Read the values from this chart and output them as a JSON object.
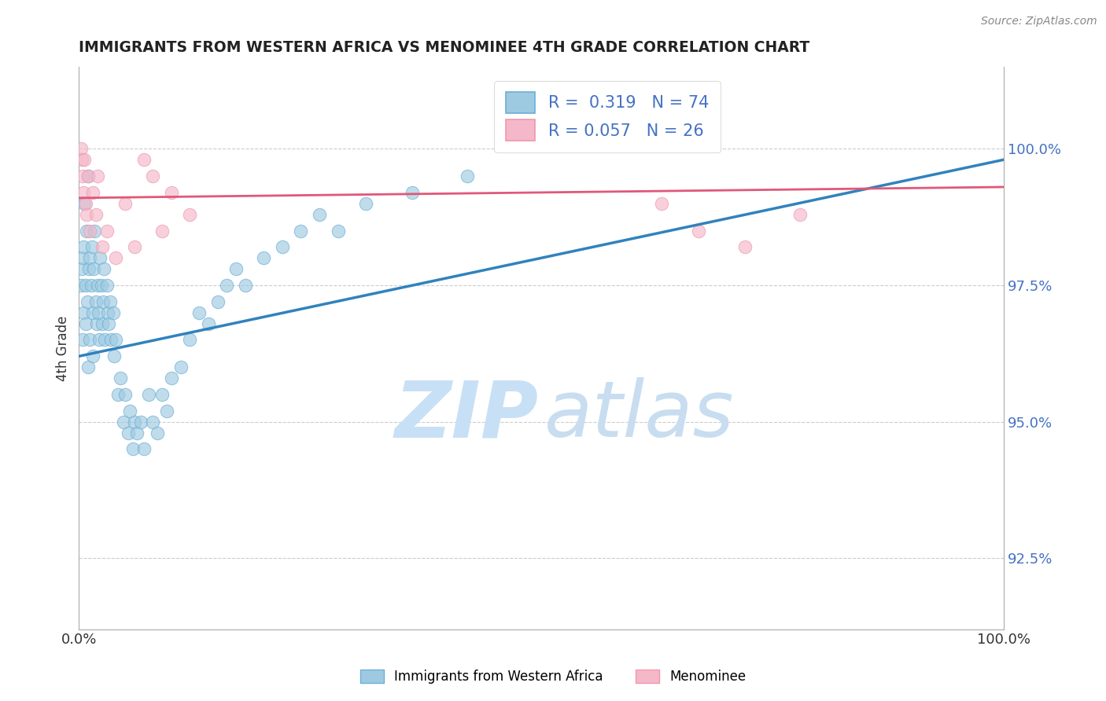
{
  "title": "IMMIGRANTS FROM WESTERN AFRICA VS MENOMINEE 4TH GRADE CORRELATION CHART",
  "source": "Source: ZipAtlas.com",
  "ylabel": "4th Grade",
  "xlim": [
    0.0,
    100.0
  ],
  "ylim": [
    91.2,
    101.5
  ],
  "yticks": [
    92.5,
    95.0,
    97.5,
    100.0
  ],
  "ytick_labels": [
    "92.5%",
    "95.0%",
    "97.5%",
    "100.0%"
  ],
  "xtick_labels": [
    "0.0%",
    "100.0%"
  ],
  "blue_R": 0.319,
  "blue_N": 74,
  "pink_R": 0.057,
  "pink_N": 26,
  "blue_color": "#9ecae1",
  "pink_color": "#f4b8c8",
  "blue_edge_color": "#6baed6",
  "pink_edge_color": "#f096b0",
  "blue_line_color": "#3182bd",
  "pink_line_color": "#e05878",
  "legend_blue_label": "Immigrants from Western Africa",
  "legend_pink_label": "Menominee",
  "background_color": "#ffffff",
  "grid_color": "#cccccc",
  "tick_value_color": "#4472c4",
  "watermark_zip_color": "#c8e0f5",
  "watermark_atlas_color": "#c8ddf0",
  "blue_x": [
    0.2,
    0.3,
    0.4,
    0.4,
    0.5,
    0.5,
    0.6,
    0.7,
    0.7,
    0.8,
    0.9,
    1.0,
    1.0,
    1.1,
    1.2,
    1.2,
    1.3,
    1.4,
    1.5,
    1.5,
    1.6,
    1.7,
    1.8,
    1.9,
    2.0,
    2.1,
    2.2,
    2.3,
    2.4,
    2.5,
    2.6,
    2.7,
    2.8,
    3.0,
    3.1,
    3.2,
    3.4,
    3.5,
    3.7,
    3.8,
    4.0,
    4.2,
    4.5,
    4.8,
    5.0,
    5.3,
    5.5,
    5.8,
    6.0,
    6.3,
    6.7,
    7.0,
    7.5,
    8.0,
    8.5,
    9.0,
    9.5,
    10.0,
    11.0,
    12.0,
    13.0,
    14.0,
    15.0,
    16.0,
    17.0,
    18.0,
    20.0,
    22.0,
    24.0,
    26.0,
    28.0,
    31.0,
    36.0,
    42.0
  ],
  "blue_y": [
    97.5,
    97.8,
    98.0,
    96.5,
    98.2,
    97.0,
    99.0,
    97.5,
    96.8,
    98.5,
    97.2,
    99.5,
    96.0,
    97.8,
    98.0,
    96.5,
    97.5,
    98.2,
    97.0,
    96.2,
    97.8,
    98.5,
    97.2,
    96.8,
    97.5,
    97.0,
    96.5,
    98.0,
    97.5,
    96.8,
    97.2,
    97.8,
    96.5,
    97.5,
    97.0,
    96.8,
    97.2,
    96.5,
    97.0,
    96.2,
    96.5,
    95.5,
    95.8,
    95.0,
    95.5,
    94.8,
    95.2,
    94.5,
    95.0,
    94.8,
    95.0,
    94.5,
    95.5,
    95.0,
    94.8,
    95.5,
    95.2,
    95.8,
    96.0,
    96.5,
    97.0,
    96.8,
    97.2,
    97.5,
    97.8,
    97.5,
    98.0,
    98.2,
    98.5,
    98.8,
    98.5,
    99.0,
    99.2,
    99.5
  ],
  "pink_x": [
    0.2,
    0.3,
    0.4,
    0.5,
    0.6,
    0.7,
    0.8,
    1.0,
    1.2,
    1.5,
    1.8,
    2.0,
    2.5,
    3.0,
    4.0,
    5.0,
    6.0,
    7.0,
    8.0,
    9.0,
    10.0,
    12.0,
    63.0,
    67.0,
    72.0,
    78.0
  ],
  "pink_y": [
    100.0,
    99.8,
    99.5,
    99.2,
    99.8,
    99.0,
    98.8,
    99.5,
    98.5,
    99.2,
    98.8,
    99.5,
    98.2,
    98.5,
    98.0,
    99.0,
    98.2,
    99.8,
    99.5,
    98.5,
    99.2,
    98.8,
    99.0,
    98.5,
    98.2,
    98.8
  ],
  "blue_line_x0": 0.0,
  "blue_line_y0": 96.2,
  "blue_line_x1": 100.0,
  "blue_line_y1": 99.8,
  "pink_line_x0": 0.0,
  "pink_line_y0": 99.1,
  "pink_line_x1": 100.0,
  "pink_line_y1": 99.3
}
